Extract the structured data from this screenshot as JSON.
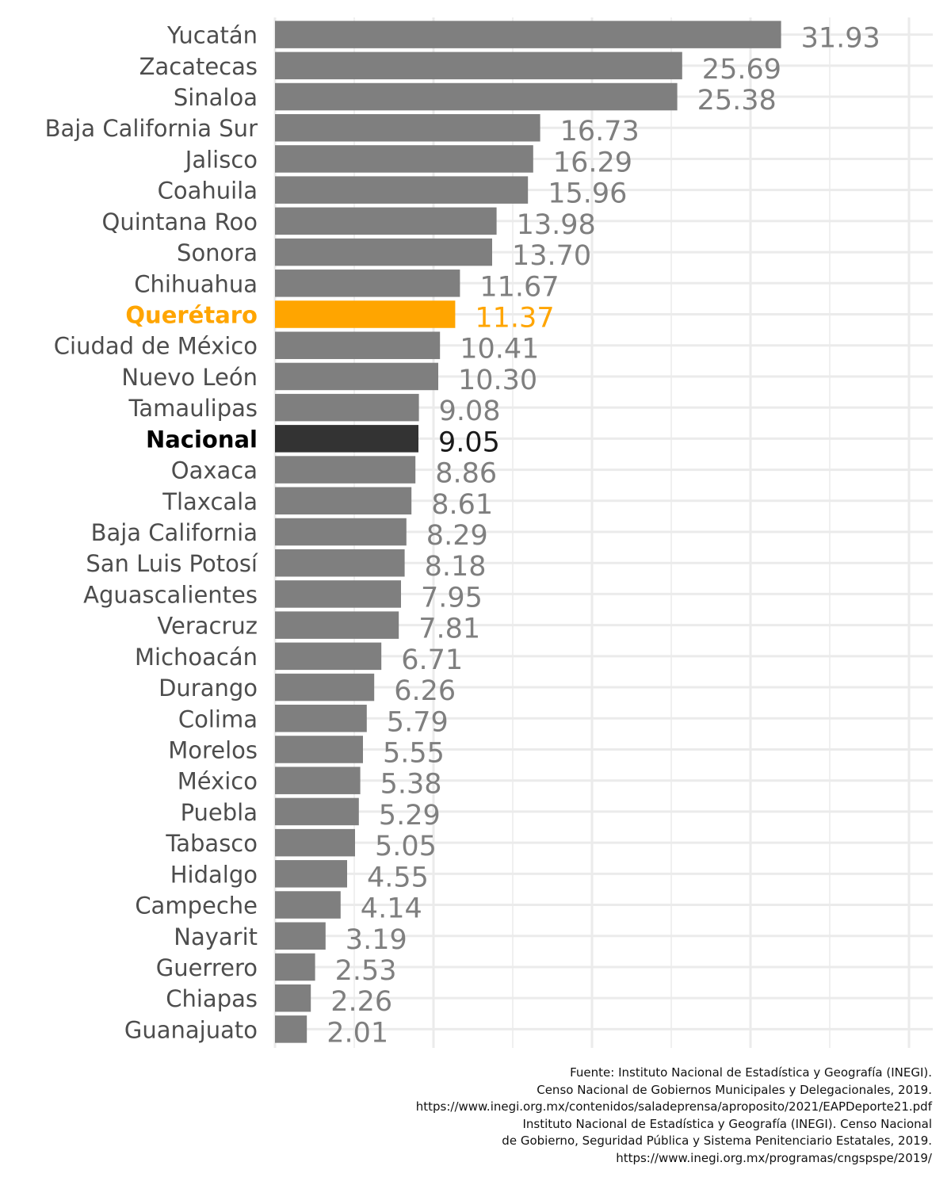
{
  "chart_data": {
    "type": "bar",
    "orientation": "horizontal",
    "title": "",
    "xlabel": "",
    "ylabel": "",
    "categories": [
      "Yucatán",
      "Zacatecas",
      "Sinaloa",
      "Baja California Sur",
      "Jalisco",
      "Coahuila",
      "Quintana Roo",
      "Sonora",
      "Chihuahua",
      "Querétaro",
      "Ciudad de México",
      "Nuevo León",
      "Tamaulipas",
      "Nacional",
      "Oaxaca",
      "Tlaxcala",
      "Baja California",
      "San Luis Potosí",
      "Aguascalientes",
      "Veracruz",
      "Michoacán",
      "Durango",
      "Colima",
      "Morelos",
      "México",
      "Puebla",
      "Tabasco",
      "Hidalgo",
      "Campeche",
      "Nayarit",
      "Guerrero",
      "Chiapas",
      "Guanajuato"
    ],
    "values": [
      31.93,
      25.69,
      25.38,
      16.73,
      16.29,
      15.96,
      13.98,
      13.7,
      11.67,
      11.37,
      10.41,
      10.3,
      9.08,
      9.05,
      8.86,
      8.61,
      8.29,
      8.18,
      7.95,
      7.81,
      6.71,
      6.26,
      5.79,
      5.55,
      5.38,
      5.29,
      5.05,
      4.55,
      4.14,
      3.19,
      2.53,
      2.26,
      2.01
    ],
    "value_labels": [
      "31.93",
      "25.69",
      "25.38",
      "16.73",
      "16.29",
      "15.96",
      "13.98",
      "13.70",
      "11.67",
      "11.37",
      "10.41",
      "10.30",
      "9.08",
      "9.05",
      "8.86",
      "8.61",
      "8.29",
      "8.18",
      "7.95",
      "7.81",
      "6.71",
      "6.26",
      "5.79",
      "5.55",
      "5.38",
      "5.29",
      "5.05",
      "4.55",
      "4.14",
      "3.19",
      "2.53",
      "2.26",
      "2.01"
    ],
    "highlight": {
      "Querétaro": "#FFA500",
      "Nacional": "#333333"
    },
    "colors": {
      "bar_default": "#7f7f7f",
      "label_default": "#4d4d4d",
      "value_default": "#7f7f7f",
      "nacional_label": "#000000",
      "nacional_value": "#1a1a1a",
      "grid": "#ebebeb"
    },
    "xlim": [
      0,
      40
    ],
    "x_grid_major": [
      0,
      10,
      20,
      30,
      40
    ],
    "x_grid_minor": [
      5,
      15,
      25,
      35
    ],
    "x_tick_labels": false,
    "grid": true,
    "legend": "none"
  },
  "caption": {
    "lines": [
      "Fuente: Instituto Nacional de Estadística y Geografía (INEGI).",
      "Censo Nacional de Gobiernos Municipales y Delegacionales, 2019.",
      "https://www.inegi.org.mx/contenidos/saladeprensa/aproposito/2021/EAPDeporte21.pdf",
      "Instituto Nacional de Estadística y Geografía (INEGI). Censo Nacional",
      "de Gobierno, Seguridad Pública y Sistema Penitenciario Estatales, 2019.",
      "https://www.inegi.org.mx/programas/cngspspe/2019/"
    ]
  }
}
